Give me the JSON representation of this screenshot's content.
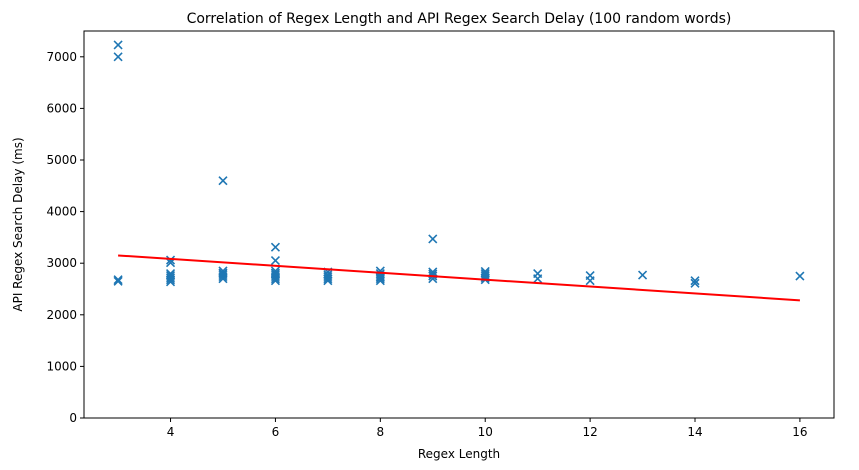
{
  "chart_data": {
    "type": "scatter",
    "title": "Correlation of Regex Length and API Regex Search Delay (100 random words)",
    "xlabel": "Regex Length",
    "ylabel": "API Regex Search Delay (ms)",
    "xlim": [
      2.35,
      16.65
    ],
    "ylim": [
      0,
      7500
    ],
    "xticks": [
      4,
      6,
      8,
      10,
      12,
      14,
      16
    ],
    "yticks": [
      0,
      1000,
      2000,
      3000,
      4000,
      5000,
      6000,
      7000
    ],
    "grid": false,
    "marker": "x",
    "colors": {
      "points": "#1f77b4",
      "trend": "#ff0000"
    },
    "points": [
      {
        "x": 3,
        "y": 7230
      },
      {
        "x": 3,
        "y": 7000
      },
      {
        "x": 3,
        "y": 2680
      },
      {
        "x": 3,
        "y": 2650
      },
      {
        "x": 4,
        "y": 3060
      },
      {
        "x": 4,
        "y": 3010
      },
      {
        "x": 4,
        "y": 2800
      },
      {
        "x": 4,
        "y": 2760
      },
      {
        "x": 4,
        "y": 2720
      },
      {
        "x": 4,
        "y": 2680
      },
      {
        "x": 4,
        "y": 2640
      },
      {
        "x": 5,
        "y": 4600
      },
      {
        "x": 5,
        "y": 2850
      },
      {
        "x": 5,
        "y": 2810
      },
      {
        "x": 5,
        "y": 2780
      },
      {
        "x": 5,
        "y": 2740
      },
      {
        "x": 5,
        "y": 2700
      },
      {
        "x": 6,
        "y": 3310
      },
      {
        "x": 6,
        "y": 3050
      },
      {
        "x": 6,
        "y": 2850
      },
      {
        "x": 6,
        "y": 2810
      },
      {
        "x": 6,
        "y": 2780
      },
      {
        "x": 6,
        "y": 2740
      },
      {
        "x": 6,
        "y": 2700
      },
      {
        "x": 6,
        "y": 2660
      },
      {
        "x": 7,
        "y": 2830
      },
      {
        "x": 7,
        "y": 2780
      },
      {
        "x": 7,
        "y": 2740
      },
      {
        "x": 7,
        "y": 2700
      },
      {
        "x": 7,
        "y": 2660
      },
      {
        "x": 8,
        "y": 2850
      },
      {
        "x": 8,
        "y": 2800
      },
      {
        "x": 8,
        "y": 2760
      },
      {
        "x": 8,
        "y": 2730
      },
      {
        "x": 8,
        "y": 2700
      },
      {
        "x": 8,
        "y": 2660
      },
      {
        "x": 9,
        "y": 3470
      },
      {
        "x": 9,
        "y": 2830
      },
      {
        "x": 9,
        "y": 2790
      },
      {
        "x": 9,
        "y": 2750
      },
      {
        "x": 9,
        "y": 2700
      },
      {
        "x": 10,
        "y": 2840
      },
      {
        "x": 10,
        "y": 2800
      },
      {
        "x": 10,
        "y": 2760
      },
      {
        "x": 10,
        "y": 2720
      },
      {
        "x": 10,
        "y": 2680
      },
      {
        "x": 11,
        "y": 2800
      },
      {
        "x": 11,
        "y": 2700
      },
      {
        "x": 12,
        "y": 2760
      },
      {
        "x": 12,
        "y": 2660
      },
      {
        "x": 13,
        "y": 2770
      },
      {
        "x": 14,
        "y": 2660
      },
      {
        "x": 14,
        "y": 2610
      },
      {
        "x": 16,
        "y": 2750
      }
    ],
    "trendline": {
      "x": [
        3,
        16
      ],
      "y": [
        3150,
        2280
      ]
    }
  }
}
